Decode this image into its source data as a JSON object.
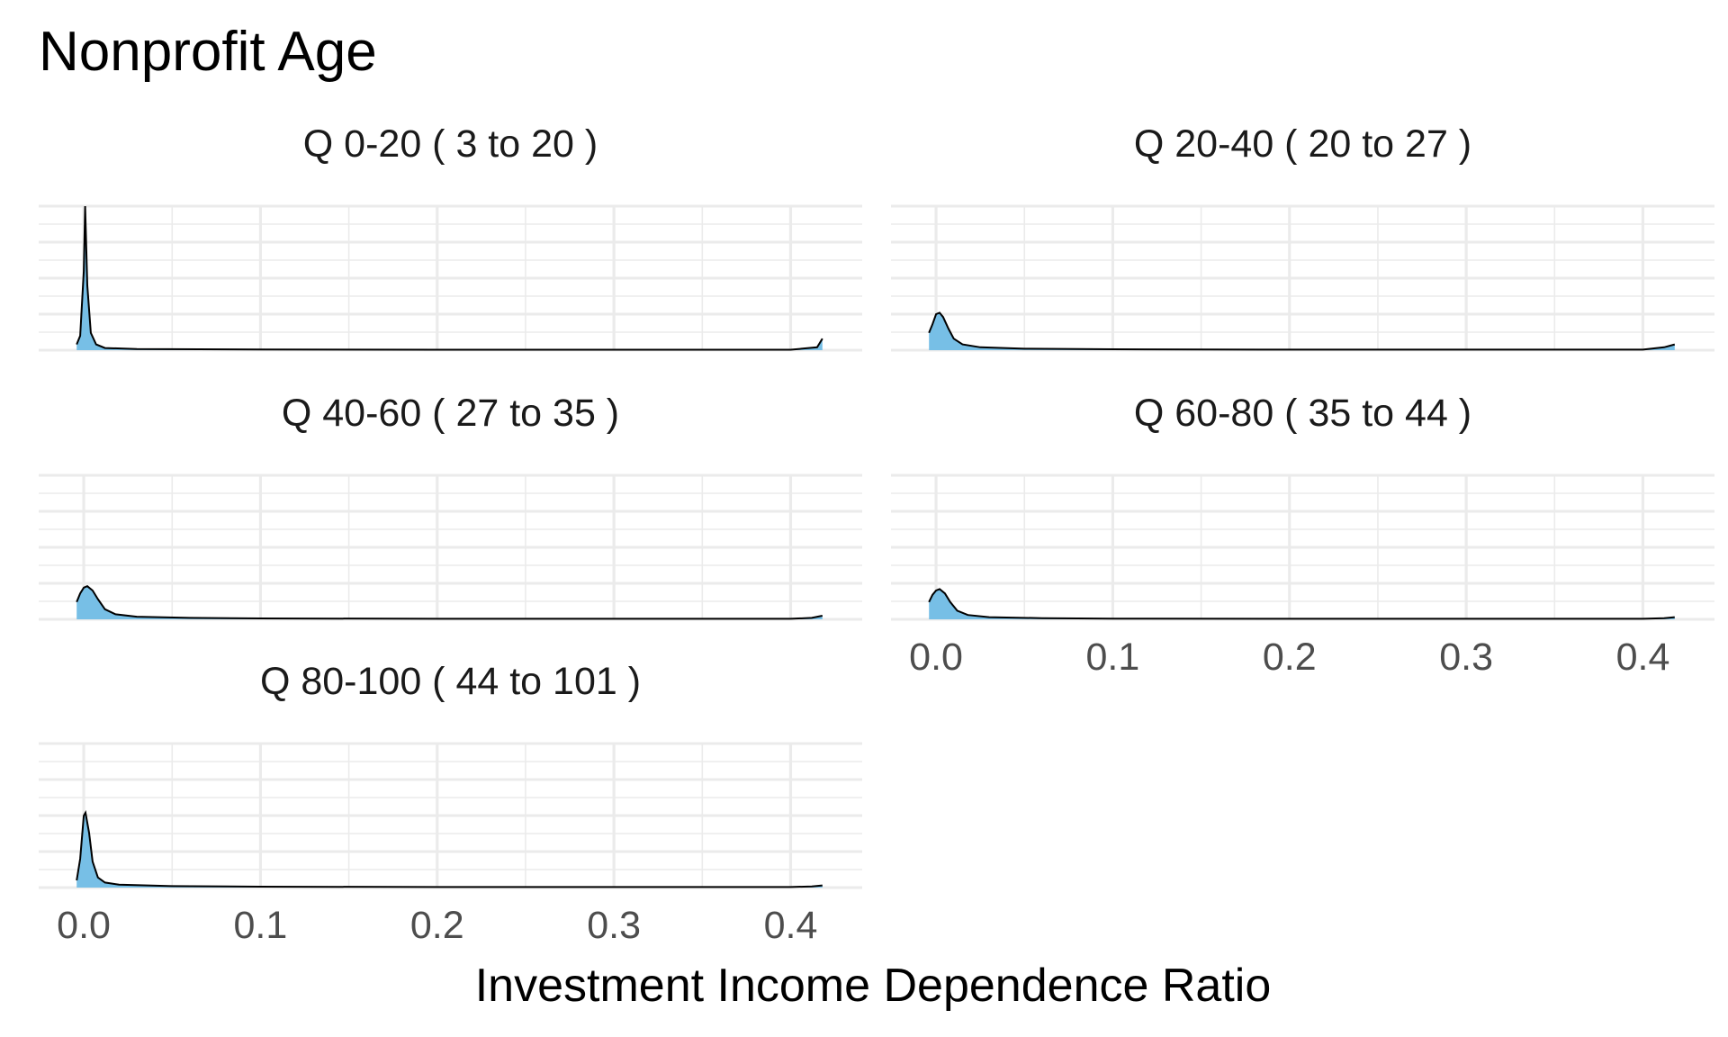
{
  "chart_data": {
    "type": "area",
    "title": "Nonprofit Age",
    "xlabel": "Investment Income Dependence Ratio",
    "ylabel": "",
    "xlim": [
      -0.0255,
      0.4405
    ],
    "x_ticks": [
      0.0,
      0.1,
      0.2,
      0.3,
      0.4
    ],
    "x_tick_labels": [
      "0.0",
      "0.1",
      "0.2",
      "0.3",
      "0.4"
    ],
    "grid": true,
    "legend": "none",
    "colors": {
      "fill": "#77bfe6",
      "line": "#000000",
      "grid": "#ebebeb"
    },
    "facets": [
      {
        "label": "Q 0-20   ( 3 to 20 )",
        "ymax": 1.0,
        "points": [
          [
            -0.004,
            0.04
          ],
          [
            -0.002,
            0.1
          ],
          [
            0.0,
            0.55
          ],
          [
            0.0008,
            1.0
          ],
          [
            0.002,
            0.45
          ],
          [
            0.004,
            0.12
          ],
          [
            0.007,
            0.04
          ],
          [
            0.012,
            0.015
          ],
          [
            0.03,
            0.008
          ],
          [
            0.1,
            0.005
          ],
          [
            0.2,
            0.003
          ],
          [
            0.3,
            0.003
          ],
          [
            0.4,
            0.003
          ],
          [
            0.415,
            0.02
          ],
          [
            0.418,
            0.08
          ]
        ]
      },
      {
        "label": "Q 20-40   ( 20 to 27 )",
        "ymax": 1.0,
        "points": [
          [
            -0.004,
            0.12
          ],
          [
            -0.002,
            0.18
          ],
          [
            0.0,
            0.25
          ],
          [
            0.002,
            0.26
          ],
          [
            0.004,
            0.23
          ],
          [
            0.007,
            0.15
          ],
          [
            0.01,
            0.08
          ],
          [
            0.015,
            0.04
          ],
          [
            0.025,
            0.02
          ],
          [
            0.05,
            0.01
          ],
          [
            0.1,
            0.006
          ],
          [
            0.2,
            0.004
          ],
          [
            0.3,
            0.004
          ],
          [
            0.4,
            0.004
          ],
          [
            0.412,
            0.02
          ],
          [
            0.418,
            0.04
          ]
        ]
      },
      {
        "label": "Q 40-60   ( 27 to 35 )",
        "ymax": 1.0,
        "points": [
          [
            -0.004,
            0.12
          ],
          [
            -0.002,
            0.18
          ],
          [
            0.0,
            0.22
          ],
          [
            0.002,
            0.23
          ],
          [
            0.005,
            0.2
          ],
          [
            0.008,
            0.14
          ],
          [
            0.012,
            0.07
          ],
          [
            0.018,
            0.035
          ],
          [
            0.03,
            0.018
          ],
          [
            0.06,
            0.01
          ],
          [
            0.1,
            0.006
          ],
          [
            0.2,
            0.004
          ],
          [
            0.3,
            0.004
          ],
          [
            0.4,
            0.004
          ],
          [
            0.412,
            0.01
          ],
          [
            0.418,
            0.025
          ]
        ]
      },
      {
        "label": "Q 60-80   ( 35 to 44 )",
        "ymax": 1.0,
        "points": [
          [
            -0.004,
            0.12
          ],
          [
            -0.002,
            0.17
          ],
          [
            0.0,
            0.2
          ],
          [
            0.002,
            0.21
          ],
          [
            0.005,
            0.18
          ],
          [
            0.008,
            0.12
          ],
          [
            0.012,
            0.06
          ],
          [
            0.018,
            0.03
          ],
          [
            0.03,
            0.015
          ],
          [
            0.06,
            0.008
          ],
          [
            0.1,
            0.005
          ],
          [
            0.2,
            0.004
          ],
          [
            0.3,
            0.004
          ],
          [
            0.4,
            0.004
          ],
          [
            0.412,
            0.008
          ],
          [
            0.418,
            0.015
          ]
        ]
      },
      {
        "label": "Q 80-100   ( 44 to 101 )",
        "ymax": 1.0,
        "points": [
          [
            -0.004,
            0.05
          ],
          [
            -0.002,
            0.2
          ],
          [
            0.0,
            0.5
          ],
          [
            0.001,
            0.52
          ],
          [
            0.003,
            0.38
          ],
          [
            0.005,
            0.18
          ],
          [
            0.008,
            0.07
          ],
          [
            0.012,
            0.035
          ],
          [
            0.02,
            0.02
          ],
          [
            0.05,
            0.01
          ],
          [
            0.1,
            0.006
          ],
          [
            0.2,
            0.004
          ],
          [
            0.3,
            0.004
          ],
          [
            0.4,
            0.004
          ],
          [
            0.412,
            0.008
          ],
          [
            0.418,
            0.015
          ]
        ]
      }
    ]
  }
}
